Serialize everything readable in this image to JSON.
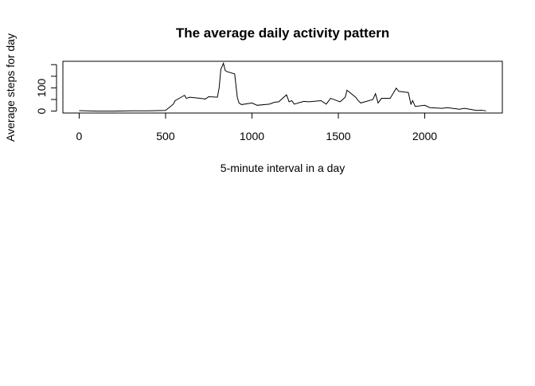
{
  "chart_data": {
    "type": "line",
    "title": "The average daily activity pattern",
    "x_label": "5-minute interval in a day",
    "y_label": "Average steps for day",
    "x": [
      0,
      100,
      200,
      300,
      400,
      500,
      520,
      545,
      555,
      610,
      620,
      640,
      700,
      730,
      750,
      800,
      810,
      820,
      835,
      845,
      855,
      900,
      915,
      925,
      940,
      1000,
      1030,
      1100,
      1130,
      1155,
      1200,
      1215,
      1230,
      1245,
      1300,
      1330,
      1400,
      1430,
      1455,
      1510,
      1540,
      1550,
      1600,
      1615,
      1630,
      1700,
      1715,
      1730,
      1750,
      1800,
      1820,
      1835,
      1850,
      1905,
      1920,
      1930,
      1945,
      2000,
      2030,
      2100,
      2130,
      2200,
      2230,
      2300,
      2330,
      2355
    ],
    "values": [
      2,
      0,
      0,
      1,
      1,
      3,
      15,
      30,
      45,
      68,
      55,
      60,
      55,
      52,
      62,
      60,
      100,
      180,
      206,
      175,
      170,
      160,
      60,
      35,
      28,
      35,
      25,
      30,
      38,
      40,
      70,
      40,
      45,
      30,
      42,
      40,
      45,
      30,
      55,
      40,
      60,
      90,
      60,
      45,
      35,
      50,
      75,
      35,
      55,
      55,
      80,
      99,
      85,
      80,
      30,
      45,
      20,
      25,
      15,
      12,
      15,
      8,
      12,
      3,
      4,
      1
    ],
    "color": "#000000",
    "xlim": [
      -94.2,
      2449.2
    ],
    "xticks": [
      0,
      500,
      1000,
      1500,
      2000
    ],
    "ylim": [
      -8.2,
      214.4
    ],
    "yticks": [
      0,
      50,
      100,
      150,
      200
    ]
  }
}
